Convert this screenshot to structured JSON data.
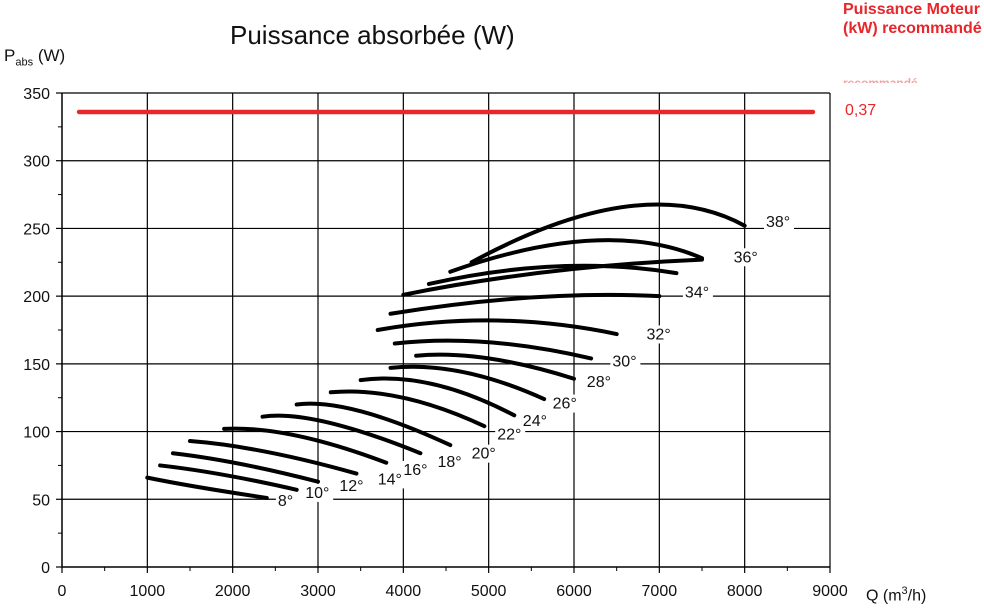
{
  "chart_data": {
    "type": "line",
    "title": "Puissance absorbée (W)",
    "ylabel_main": "P",
    "ylabel_sub": "abs",
    "ylabel_unit": " (W)",
    "xlabel_main": "Q  (m",
    "xlabel_sup": "3",
    "xlabel_unit": "/h)",
    "xlim": [
      0,
      9000
    ],
    "ylim": [
      0,
      350
    ],
    "x_ticks": [
      "0",
      "1000",
      "2000",
      "3000",
      "4000",
      "5000",
      "6000",
      "7000",
      "8000",
      "9000"
    ],
    "y_ticks": [
      "0",
      "50",
      "100",
      "150",
      "200",
      "250",
      "300",
      "350"
    ],
    "grid": true,
    "motor_line": {
      "y": 336,
      "x_start": 200,
      "x_end": 8800,
      "color": "#e8262b"
    },
    "series": [
      {
        "name": "8°",
        "label_at": [
          2530,
          45
        ],
        "x": [
          1000,
          1600,
          2400
        ],
        "y": [
          66,
          59,
          51
        ]
      },
      {
        "name": "10°",
        "label_at": [
          2850,
          51
        ],
        "x": [
          1150,
          1900,
          2750
        ],
        "y": [
          75,
          68,
          57
        ]
      },
      {
        "name": "12°",
        "label_at": [
          3250,
          56
        ],
        "x": [
          1300,
          2100,
          3000
        ],
        "y": [
          84,
          76,
          63
        ]
      },
      {
        "name": "14°",
        "label_at": [
          3700,
          61
        ],
        "x": [
          1500,
          2400,
          3450
        ],
        "y": [
          93,
          85,
          69
        ]
      },
      {
        "name": "16°",
        "label_at": [
          4000,
          68
        ],
        "x": [
          1900,
          2750,
          3800
        ],
        "y": [
          102,
          97,
          77
        ]
      },
      {
        "name": "18°",
        "label_at": [
          4400,
          74
        ],
        "x": [
          2350,
          3100,
          4200
        ],
        "y": [
          111,
          107,
          84
        ]
      },
      {
        "name": "20°",
        "label_at": [
          4800,
          80
        ],
        "x": [
          2750,
          3500,
          4550
        ],
        "y": [
          120,
          115,
          90
        ]
      },
      {
        "name": "22°",
        "label_at": [
          5100,
          94
        ],
        "x": [
          3150,
          4000,
          4950
        ],
        "y": [
          129,
          125,
          104
        ]
      },
      {
        "name": "24°",
        "label_at": [
          5400,
          104
        ],
        "x": [
          3500,
          4350,
          5300
        ],
        "y": [
          138,
          135,
          112
        ]
      },
      {
        "name": "26°",
        "label_at": [
          5750,
          117
        ],
        "x": [
          3850,
          4700,
          5650
        ],
        "y": [
          147,
          144,
          124
        ]
      },
      {
        "name": "28°",
        "label_at": [
          6150,
          133
        ],
        "x": [
          4150,
          5000,
          6000
        ],
        "y": [
          156,
          154,
          139
        ]
      },
      {
        "name": "30°",
        "label_at": [
          6450,
          148
        ],
        "x": [
          3900,
          5000,
          6200
        ],
        "y": [
          165,
          166,
          154
        ]
      },
      {
        "name": "32°",
        "label_at": [
          6850,
          168
        ],
        "x": [
          3700,
          5100,
          6500
        ],
        "y": [
          175,
          182,
          172
        ]
      },
      {
        "name": "34°",
        "label_at": [
          7300,
          199
        ],
        "x": [
          3850,
          5500,
          7000
        ],
        "y": [
          187,
          199,
          200
        ]
      },
      {
        "name": "36°",
        "label_at": [
          7870,
          225
        ],
        "x": [
          4000,
          5700,
          7500
        ],
        "y": [
          201,
          218,
          227
        ]
      },
      {
        "name": "",
        "label_at": [
          0,
          0
        ],
        "x": [
          4300,
          5800,
          7200
        ],
        "y": [
          209,
          222,
          217
        ]
      },
      {
        "name": "",
        "label_at": [
          0,
          0
        ],
        "x": [
          4550,
          6200,
          7500
        ],
        "y": [
          218,
          241,
          228
        ]
      },
      {
        "name": "38°",
        "label_at": [
          8250,
          251
        ],
        "x": [
          4800,
          6600,
          8000
        ],
        "y": [
          225,
          266,
          252
        ]
      }
    ]
  },
  "motor_panel": {
    "title": "Puissance Moteur (kW) recommandé",
    "ghost": "recommandé",
    "value": "0,37"
  }
}
